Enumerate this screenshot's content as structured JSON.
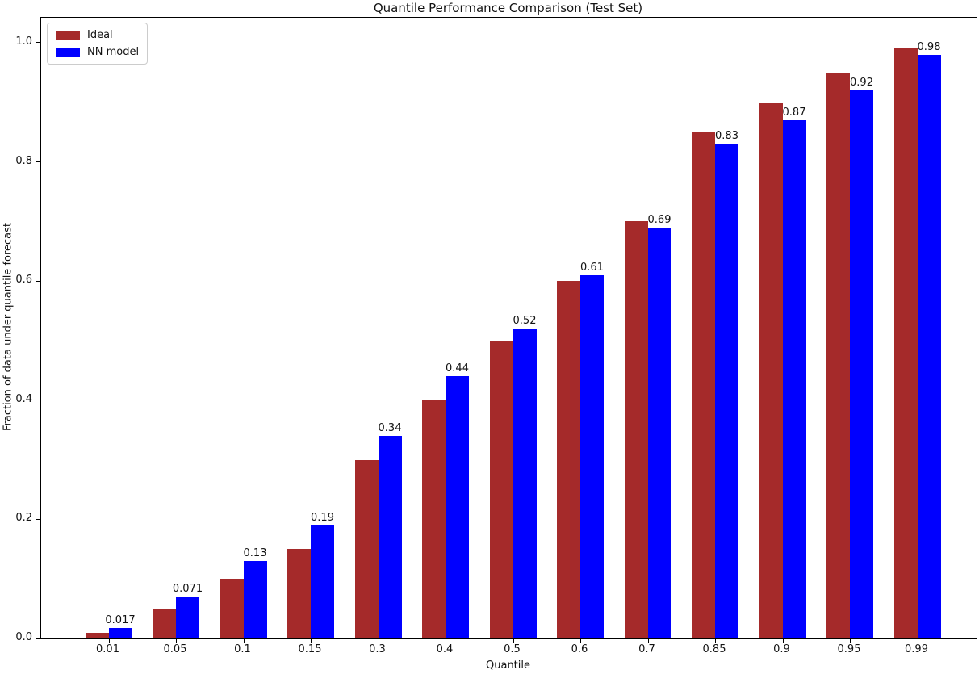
{
  "title": "Quantile Performance Comparison (Test Set)",
  "chart_data": {
    "type": "bar",
    "title": "Quantile Performance Comparison (Test Set)",
    "xlabel": "Quantile",
    "ylabel": "Fraction of data under quantile forecast",
    "categories": [
      "0.01",
      "0.05",
      "0.1",
      "0.15",
      "0.3",
      "0.4",
      "0.5",
      "0.6",
      "0.7",
      "0.85",
      "0.9",
      "0.95",
      "0.99"
    ],
    "series": [
      {
        "name": "Ideal",
        "color": "#A52A2A",
        "values": [
          0.01,
          0.05,
          0.1,
          0.15,
          0.3,
          0.4,
          0.5,
          0.6,
          0.7,
          0.85,
          0.9,
          0.95,
          0.99
        ]
      },
      {
        "name": "NN model",
        "color": "#0000FF",
        "values": [
          0.017,
          0.071,
          0.13,
          0.19,
          0.34,
          0.44,
          0.52,
          0.61,
          0.69,
          0.83,
          0.87,
          0.92,
          0.98
        ]
      }
    ],
    "bar_labels": [
      "0.017",
      "0.071",
      "0.13",
      "0.19",
      "0.34",
      "0.44",
      "0.52",
      "0.61",
      "0.69",
      "0.83",
      "0.87",
      "0.92",
      "0.98"
    ],
    "yticks": [
      "0.0",
      "0.2",
      "0.4",
      "0.6",
      "0.8",
      "1.0"
    ],
    "ylim": [
      0,
      1.042
    ],
    "grid": false,
    "legend_position": "upper left"
  }
}
